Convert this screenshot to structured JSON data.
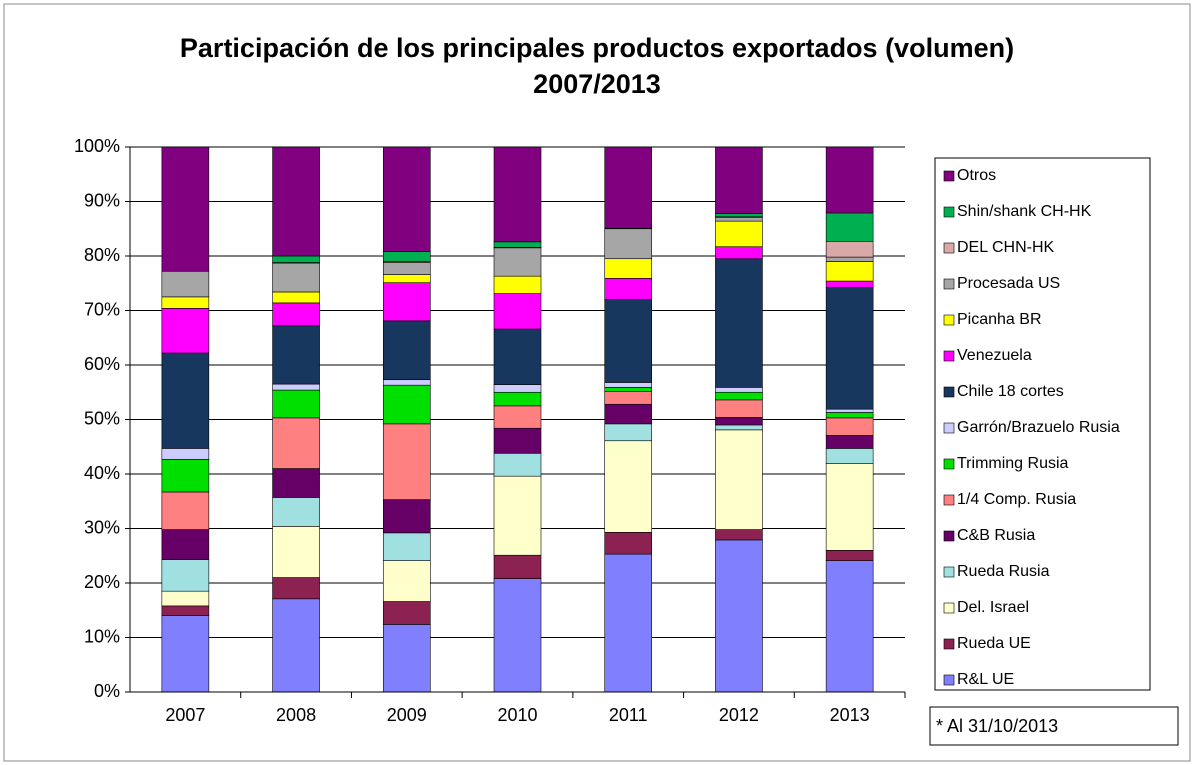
{
  "chart_data": {
    "type": "stacked_bar_100",
    "title": [
      "Participación de los principales productos exportados (volumen)",
      "2007/2013"
    ],
    "note": "* Al 31/10/2013",
    "categories": [
      "2007",
      "2008",
      "2009",
      "2010",
      "2011",
      "2012",
      "2013"
    ],
    "ylim": [
      0,
      100
    ],
    "yticks": [
      {
        "value": 0,
        "label": "0%"
      },
      {
        "value": 10,
        "label": "10%"
      },
      {
        "value": 20,
        "label": "20%"
      },
      {
        "value": 30,
        "label": "30%"
      },
      {
        "value": 40,
        "label": "40%"
      },
      {
        "value": 50,
        "label": "50%"
      },
      {
        "value": 60,
        "label": "60%"
      },
      {
        "value": 70,
        "label": "70%"
      },
      {
        "value": 80,
        "label": "80%"
      },
      {
        "value": 90,
        "label": "90%"
      },
      {
        "value": 100,
        "label": "100%"
      }
    ],
    "grid": true,
    "legend": "right",
    "series": [
      {
        "name": "R&L UE",
        "color": "#8080ff",
        "values": [
          14,
          17.1,
          12.4,
          20.8,
          25.3,
          27.9,
          24.1
        ]
      },
      {
        "name": "Rueda UE",
        "color": "#8b2252",
        "values": [
          1.8,
          3.9,
          4.2,
          4.3,
          4.0,
          1.9,
          1.9
        ]
      },
      {
        "name": "Del. Israel",
        "color": "#ffffcc",
        "values": [
          2.7,
          9.4,
          7.5,
          14.5,
          16.8,
          18.3,
          15.9
        ]
      },
      {
        "name": "Rueda Rusia",
        "color": "#a0e0e0",
        "values": [
          5.8,
          5.3,
          5.1,
          4.2,
          3.1,
          0.9,
          2.8
        ]
      },
      {
        "name": "C&B Rusia",
        "color": "#660066",
        "values": [
          5.5,
          5.3,
          6.1,
          4.6,
          3.6,
          1.4,
          2.4
        ]
      },
      {
        "name": "1/4 Comp. Rusia",
        "color": "#ff8080",
        "values": [
          6.9,
          9.3,
          13.9,
          4.1,
          2.3,
          3.2,
          3.2
        ]
      },
      {
        "name": "Trimming Rusia",
        "color": "#00e000",
        "values": [
          6.0,
          5.1,
          7.1,
          2.5,
          0.8,
          1.4,
          1.0
        ]
      },
      {
        "name": "Garrón/Brazuelo Rusia",
        "color": "#ccccff",
        "values": [
          2.0,
          1.1,
          1.0,
          1.4,
          0.9,
          0.9,
          0.6
        ]
      },
      {
        "name": "Chile 18 cortes",
        "color": "#17375e",
        "values": [
          17.5,
          10.7,
          10.8,
          10.2,
          15.2,
          23.6,
          22.3
        ]
      },
      {
        "name": "Venezuela",
        "color": "#ff00ff",
        "values": [
          8.2,
          4.2,
          7.0,
          6.5,
          3.9,
          2.2,
          1.2
        ]
      },
      {
        "name": "Picanha BR",
        "color": "#ffff00",
        "values": [
          2.1,
          2.0,
          1.5,
          3.2,
          3.6,
          4.7,
          3.6
        ]
      },
      {
        "name": "Procesada US",
        "color": "#a6a6a6",
        "values": [
          4.7,
          5.3,
          2.2,
          5.2,
          5.5,
          0.7,
          0.8
        ]
      },
      {
        "name": "DEL CHN-HK",
        "color": "#d9a8a8",
        "values": [
          0,
          0.1,
          0.2,
          0.1,
          0,
          0.1,
          2.9
        ]
      },
      {
        "name": "Shin/shank CH-HK",
        "color": "#00b050",
        "values": [
          0,
          1.2,
          1.8,
          1.0,
          0.1,
          0.6,
          5.2
        ]
      },
      {
        "name": "Otros",
        "color": "#800080",
        "values": [
          22.8,
          20.0,
          19.2,
          17.4,
          14.9,
          12.2,
          12.1
        ]
      }
    ]
  }
}
